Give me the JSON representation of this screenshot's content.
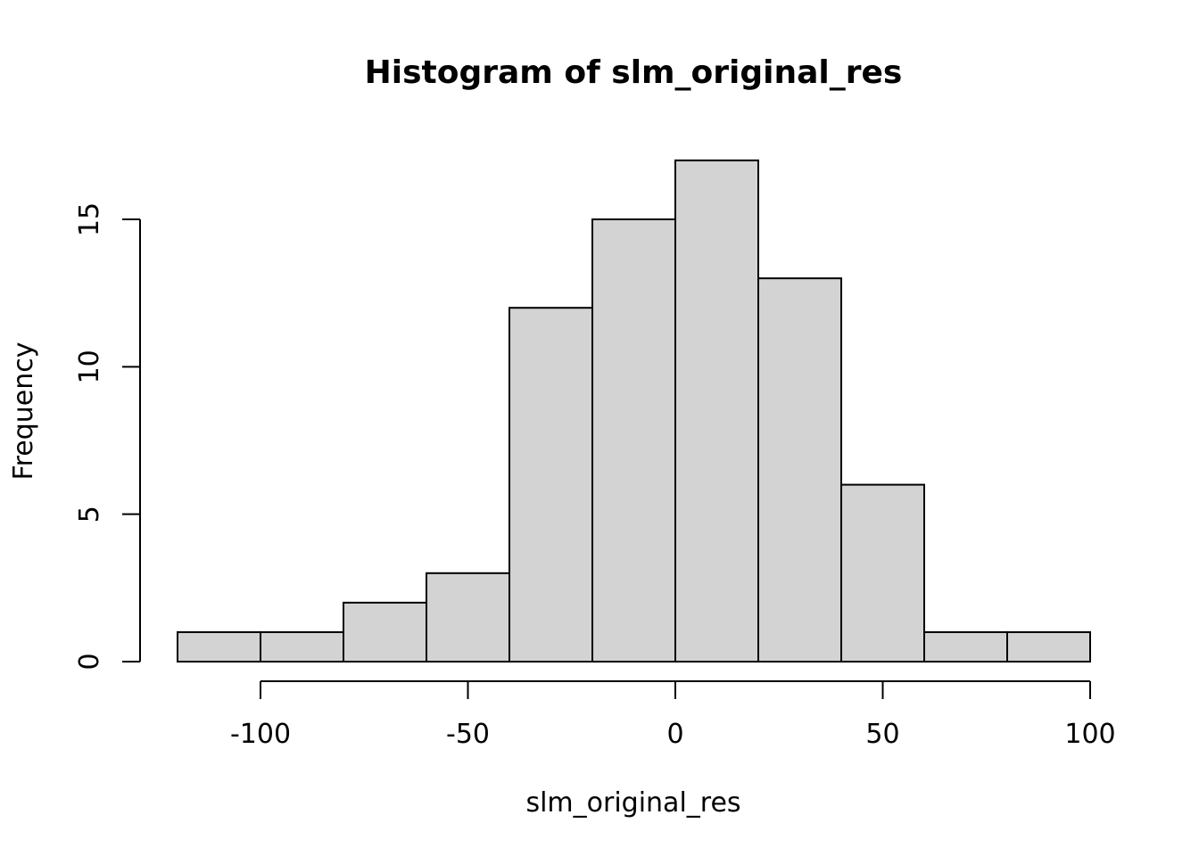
{
  "chart_data": {
    "type": "bar",
    "subtype": "histogram",
    "title": "Histogram of slm_original_res",
    "xlabel": "slm_original_res",
    "ylabel": "Frequency",
    "bins": [
      {
        "start": -120,
        "end": -100,
        "count": 1
      },
      {
        "start": -100,
        "end": -80,
        "count": 1
      },
      {
        "start": -80,
        "end": -60,
        "count": 2
      },
      {
        "start": -60,
        "end": -40,
        "count": 3
      },
      {
        "start": -40,
        "end": -20,
        "count": 12
      },
      {
        "start": -20,
        "end": 0,
        "count": 15
      },
      {
        "start": 0,
        "end": 20,
        "count": 17
      },
      {
        "start": 20,
        "end": 40,
        "count": 13
      },
      {
        "start": 40,
        "end": 60,
        "count": 6
      },
      {
        "start": 60,
        "end": 80,
        "count": 1
      },
      {
        "start": 80,
        "end": 100,
        "count": 1
      }
    ],
    "xticks": [
      -100,
      -50,
      0,
      50,
      100
    ],
    "xtick_labels": [
      "-100",
      "-50",
      "0",
      "50",
      "100"
    ],
    "yticks": [
      0,
      5,
      10,
      15
    ],
    "ytick_labels": [
      "0",
      "5",
      "10",
      "15"
    ],
    "xlim": [
      -120,
      100
    ],
    "ylim": [
      0,
      17
    ],
    "bar_color": "#d3d3d3",
    "grid": false,
    "legend": "none"
  }
}
